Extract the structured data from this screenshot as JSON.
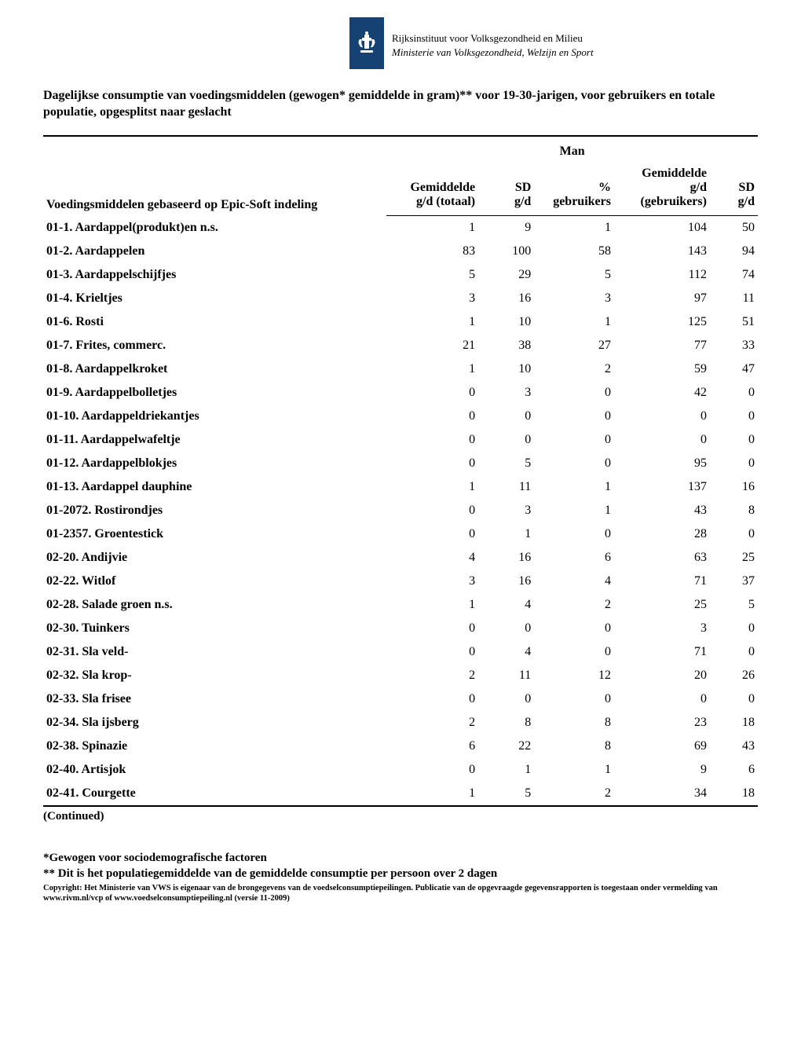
{
  "header": {
    "org_line1": "Rijksinstituut voor Volksgezondheid en Milieu",
    "org_line2": "Ministerie van Volksgezondheid, Welzijn en Sport"
  },
  "title": "Dagelijkse consumptie van voedingsmiddelen (gewogen* gemiddelde in gram)** voor 19-30-jarigen, voor gebruikers en totale populatie, opgesplitst naar geslacht",
  "table": {
    "left_header": "Voedingsmiddelen gebaseerd op Epic-Soft indeling",
    "group_header": "Man",
    "columns": [
      "Gemiddelde g/d (totaal)",
      "SD g/d",
      "% gebruikers",
      "Gemiddelde g/d (gebruikers)",
      "SD g/d"
    ],
    "col_lines": {
      "c0a": "Gemiddelde",
      "c0b": "g/d (totaal)",
      "c1a": "SD",
      "c1b": "g/d",
      "c2a": "%",
      "c2b": "gebruikers",
      "c3a": "Gemiddelde",
      "c3b": "g/d",
      "c3c": "(gebruikers)",
      "c4a": "SD",
      "c4b": "g/d"
    },
    "rows": [
      {
        "name": "01-1. Aardappel(produkt)en n.s.",
        "v": [
          "1",
          "9",
          "1",
          "104",
          "50"
        ]
      },
      {
        "name": "01-2. Aardappelen",
        "v": [
          "83",
          "100",
          "58",
          "143",
          "94"
        ]
      },
      {
        "name": "01-3. Aardappelschijfjes",
        "v": [
          "5",
          "29",
          "5",
          "112",
          "74"
        ]
      },
      {
        "name": "01-4. Krieltjes",
        "v": [
          "3",
          "16",
          "3",
          "97",
          "11"
        ]
      },
      {
        "name": "01-6. Rosti",
        "v": [
          "1",
          "10",
          "1",
          "125",
          "51"
        ]
      },
      {
        "name": "01-7. Frites, commerc.",
        "v": [
          "21",
          "38",
          "27",
          "77",
          "33"
        ]
      },
      {
        "name": "01-8. Aardappelkroket",
        "v": [
          "1",
          "10",
          "2",
          "59",
          "47"
        ]
      },
      {
        "name": "01-9. Aardappelbolletjes",
        "v": [
          "0",
          "3",
          "0",
          "42",
          "0"
        ]
      },
      {
        "name": "01-10. Aardappeldriekantjes",
        "v": [
          "0",
          "0",
          "0",
          "0",
          "0"
        ]
      },
      {
        "name": "01-11. Aardappelwafeltje",
        "v": [
          "0",
          "0",
          "0",
          "0",
          "0"
        ]
      },
      {
        "name": "01-12. Aardappelblokjes",
        "v": [
          "0",
          "5",
          "0",
          "95",
          "0"
        ]
      },
      {
        "name": "01-13. Aardappel dauphine",
        "v": [
          "1",
          "11",
          "1",
          "137",
          "16"
        ]
      },
      {
        "name": "01-2072. Rostirondjes",
        "v": [
          "0",
          "3",
          "1",
          "43",
          "8"
        ]
      },
      {
        "name": "01-2357. Groentestick",
        "v": [
          "0",
          "1",
          "0",
          "28",
          "0"
        ]
      },
      {
        "name": "02-20. Andijvie",
        "v": [
          "4",
          "16",
          "6",
          "63",
          "25"
        ]
      },
      {
        "name": "02-22. Witlof",
        "v": [
          "3",
          "16",
          "4",
          "71",
          "37"
        ]
      },
      {
        "name": "02-28. Salade groen n.s.",
        "v": [
          "1",
          "4",
          "2",
          "25",
          "5"
        ]
      },
      {
        "name": "02-30. Tuinkers",
        "v": [
          "0",
          "0",
          "0",
          "3",
          "0"
        ]
      },
      {
        "name": "02-31. Sla veld-",
        "v": [
          "0",
          "4",
          "0",
          "71",
          "0"
        ]
      },
      {
        "name": "02-32. Sla krop-",
        "v": [
          "2",
          "11",
          "12",
          "20",
          "26"
        ]
      },
      {
        "name": "02-33. Sla frisee",
        "v": [
          "0",
          "0",
          "0",
          "0",
          "0"
        ]
      },
      {
        "name": "02-34. Sla ijsberg",
        "v": [
          "2",
          "8",
          "8",
          "23",
          "18"
        ]
      },
      {
        "name": "02-38. Spinazie",
        "v": [
          "6",
          "22",
          "8",
          "69",
          "43"
        ]
      },
      {
        "name": "02-40. Artisjok",
        "v": [
          "0",
          "1",
          "1",
          "9",
          "6"
        ]
      },
      {
        "name": "02-41. Courgette",
        "v": [
          "1",
          "5",
          "2",
          "34",
          "18"
        ]
      }
    ]
  },
  "continued": "(Continued)",
  "footnotes": {
    "f1": "*Gewogen voor sociodemografische factoren",
    "f2": "** Dit is het populatiegemiddelde van de gemiddelde consumptie per persoon over 2 dagen"
  },
  "copyright": "Copyright: Het Ministerie van VWS is eigenaar van de brongegevens van de voedselconsumptiepeilingen. Publicatie van de opgevraagde gegevensrapporten is toegestaan onder vermelding van www.rivm.nl/vcp of www.voedselconsumptiepeiling.nl (versie 11-2009)"
}
